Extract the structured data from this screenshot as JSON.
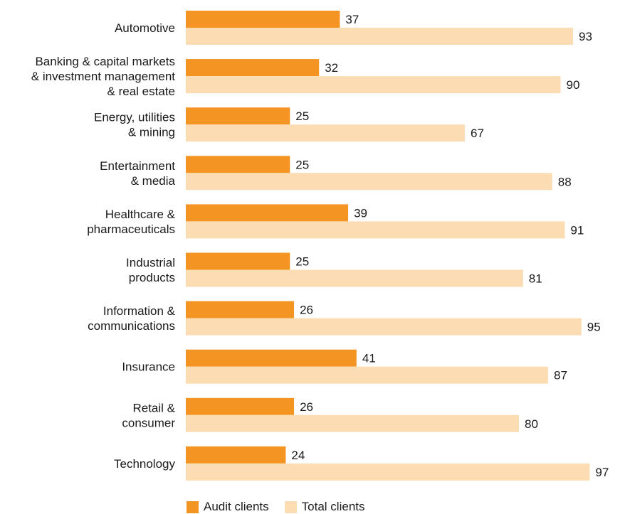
{
  "chart_data": {
    "type": "bar",
    "orientation": "horizontal",
    "categories": [
      [
        "Automotive"
      ],
      [
        "Banking & capital markets",
        "& investment management",
        "& real estate"
      ],
      [
        "Energy, utilities",
        "& mining"
      ],
      [
        "Entertainment",
        "& media"
      ],
      [
        "Healthcare &",
        "pharmaceuticals"
      ],
      [
        "Industrial",
        "products"
      ],
      [
        "Information &",
        "communications"
      ],
      [
        "Insurance"
      ],
      [
        "Retail &",
        "consumer"
      ],
      [
        "Technology"
      ]
    ],
    "series": [
      {
        "name": "Audit clients",
        "color": "#f39423",
        "values": [
          37,
          32,
          25,
          25,
          39,
          25,
          26,
          41,
          26,
          24
        ]
      },
      {
        "name": "Total clients",
        "color": "#fcdcb3",
        "values": [
          93,
          90,
          67,
          88,
          91,
          81,
          95,
          87,
          80,
          97
        ]
      }
    ],
    "xlim": [
      0,
      100
    ],
    "grid": false,
    "data_labels": true,
    "legend_position": "bottom"
  }
}
